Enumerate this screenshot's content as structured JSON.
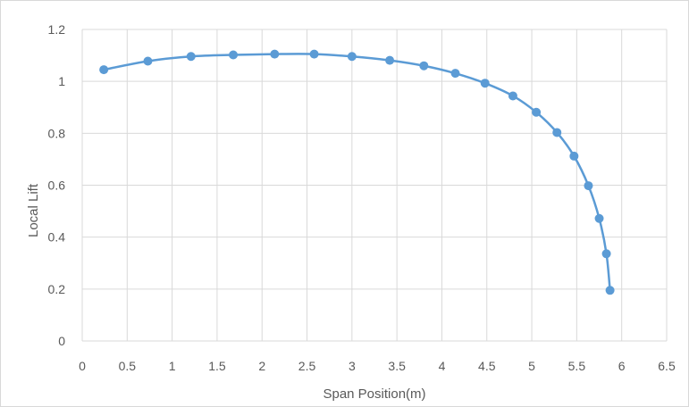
{
  "chart_data": {
    "type": "scatter",
    "title": "",
    "xlabel": "Span Position(m)",
    "ylabel": "Local Lift",
    "xlim": [
      0,
      6.5
    ],
    "ylim": [
      0,
      1.2
    ],
    "xticks": [
      0,
      0.5,
      1,
      1.5,
      2,
      2.5,
      3,
      3.5,
      4,
      4.5,
      5,
      5.5,
      6,
      6.5
    ],
    "yticks": [
      0,
      0.2,
      0.4,
      0.6,
      0.8,
      1,
      1.2
    ],
    "xtick_labels": [
      "0",
      "0.5",
      "1",
      "1.5",
      "2",
      "2.5",
      "3",
      "3.5",
      "4",
      "4.5",
      "5",
      "5.5",
      "6",
      "6.5"
    ],
    "ytick_labels": [
      "0",
      "0.2",
      "0.4",
      "0.6",
      "0.8",
      "1",
      "1.2"
    ],
    "grid": true,
    "legend": "none",
    "markers": true,
    "line": "smooth",
    "series": [
      {
        "color": "#5b9bd5",
        "x": [
          0.24,
          0.73,
          1.21,
          1.68,
          2.14,
          2.58,
          3.0,
          3.42,
          3.8,
          4.15,
          4.48,
          4.79,
          5.05,
          5.28,
          5.47,
          5.63,
          5.75,
          5.83,
          5.87
        ],
        "y": [
          1.045,
          1.078,
          1.096,
          1.102,
          1.105,
          1.105,
          1.096,
          1.081,
          1.06,
          1.031,
          0.993,
          0.944,
          0.881,
          0.803,
          0.712,
          0.598,
          0.472,
          0.336,
          0.195
        ]
      }
    ]
  },
  "colors": {
    "series": "#5b9bd5",
    "grid": "#d9d9d9",
    "text": "#595959"
  }
}
